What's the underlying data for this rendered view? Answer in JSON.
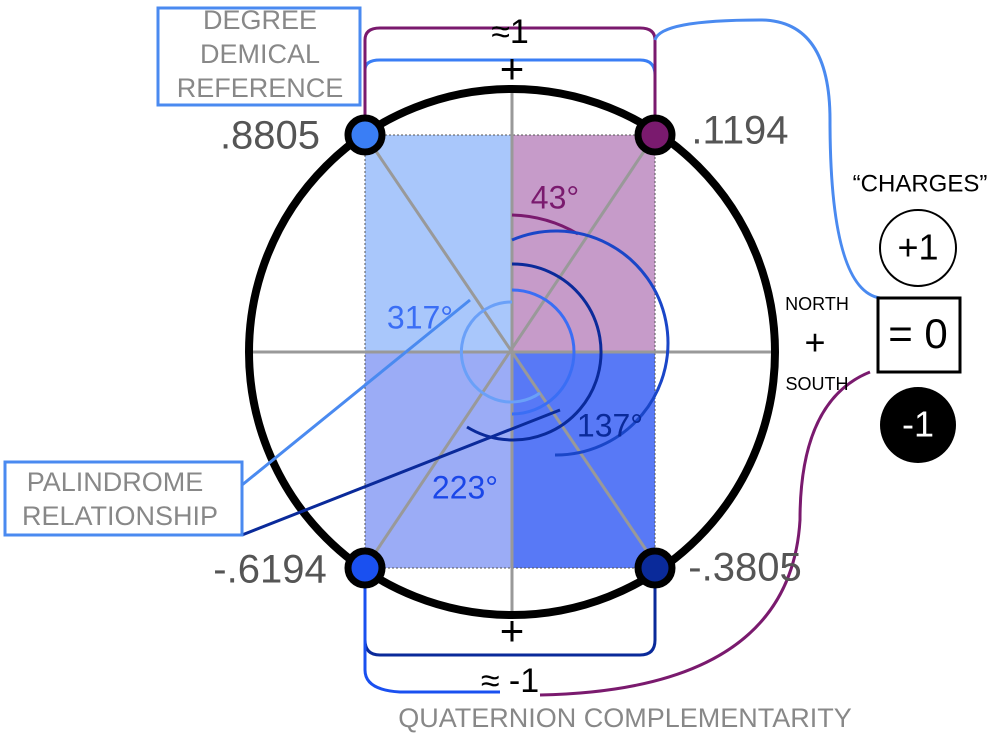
{
  "reference_label": [
    "DEGREE",
    "DEMICAL",
    "REFERENCE"
  ],
  "top_sum": "≈1",
  "top_sign": "+",
  "bottom_sign": "+",
  "bottom_sum": "≈ -1",
  "corners": {
    "top_left": ".8805",
    "top_right": ".1194",
    "bottom_left": "-.6194",
    "bottom_right": "-.3805"
  },
  "angles": {
    "a43": "43°",
    "a317": "317°",
    "a137": "137°",
    "a223": "223°"
  },
  "palindrome_label": [
    "PALINDROME",
    "RELATIONSHIP"
  ],
  "charges": {
    "title": "“CHARGES”",
    "plus": "+1",
    "zero": "= 0",
    "minus": "-1"
  },
  "north_south": {
    "north": "NORTH",
    "plus": "+",
    "south": "SOUTH"
  },
  "footer": "QUATERNION COMPLEMENTARITY"
}
